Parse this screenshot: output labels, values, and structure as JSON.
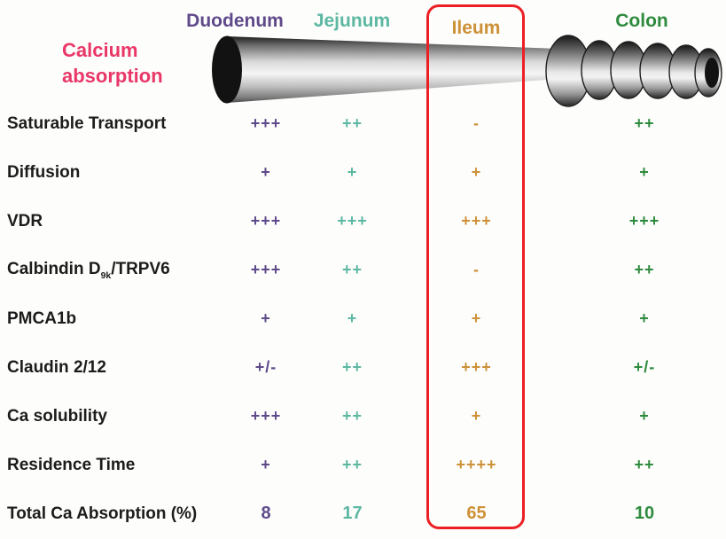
{
  "background": "#fdfdfb",
  "title": {
    "text": "Calcium absorption",
    "color": "#e93768"
  },
  "columns": [
    {
      "id": "duodenum",
      "label": "Duodenum",
      "color": "#5f4a8b"
    },
    {
      "id": "jejunum",
      "label": "Jejunum",
      "color": "#5cb8a2"
    },
    {
      "id": "ileum",
      "label": "Ileum",
      "color": "#cd9138",
      "highlighted": true
    },
    {
      "id": "colon",
      "label": "Colon",
      "color": "#2e8b3e"
    }
  ],
  "highlight": {
    "column": "Ileum",
    "border_color": "#ec2024"
  },
  "rows": [
    {
      "label": "Saturable Transport",
      "values": [
        "+++",
        "++",
        "-",
        "++"
      ]
    },
    {
      "label": "Diffusion",
      "values": [
        "+",
        "+",
        "+",
        "+"
      ]
    },
    {
      "label": "VDR",
      "values": [
        "+++",
        "+++",
        "+++",
        "+++"
      ]
    },
    {
      "label": "Calbindin D9k/TRPV6",
      "label_parts": {
        "pre": "Calbindin D",
        "sub": "9k",
        "post": "/TRPV6"
      },
      "values": [
        "+++",
        "++",
        "-",
        "++"
      ]
    },
    {
      "label": "PMCA1b",
      "values": [
        "+",
        "+",
        "+",
        "+"
      ]
    },
    {
      "label": "Claudin 2/12",
      "values": [
        "+/-",
        "++",
        "+++",
        "+/-"
      ]
    },
    {
      "label": "Ca solubility",
      "values": [
        "+++",
        "++",
        "+",
        "+"
      ]
    },
    {
      "label": "Residence Time",
      "values": [
        "+",
        "++",
        "++++",
        "++"
      ]
    },
    {
      "label": "Total Ca Absorption (%)",
      "values": [
        "8",
        "17",
        "65",
        "10"
      ],
      "numeric": true
    }
  ],
  "illustration": {
    "description": "small intestine tapering tube leading into haustrated colon",
    "tube_light": "#f5f5f5",
    "tube_dark": "#1f1f1f"
  },
  "chart_data": {
    "type": "table",
    "title": "Calcium absorption",
    "columns": [
      "Duodenum",
      "Jejunum",
      "Ileum",
      "Colon"
    ],
    "rows": [
      {
        "label": "Saturable Transport",
        "values": [
          "+++",
          "++",
          "-",
          "++"
        ]
      },
      {
        "label": "Diffusion",
        "values": [
          "+",
          "+",
          "+",
          "+"
        ]
      },
      {
        "label": "VDR",
        "values": [
          "+++",
          "+++",
          "+++",
          "+++"
        ]
      },
      {
        "label": "Calbindin D9k/TRPV6",
        "values": [
          "+++",
          "++",
          "-",
          "++"
        ]
      },
      {
        "label": "PMCA1b",
        "values": [
          "+",
          "+",
          "+",
          "+"
        ]
      },
      {
        "label": "Claudin 2/12",
        "values": [
          "+/-",
          "++",
          "+++",
          "+/-"
        ]
      },
      {
        "label": "Ca solubility",
        "values": [
          "+++",
          "++",
          "+",
          "+"
        ]
      },
      {
        "label": "Residence Time",
        "values": [
          "+",
          "++",
          "++++",
          "++"
        ]
      },
      {
        "label": "Total Ca Absorption (%)",
        "values": [
          8,
          17,
          65,
          10
        ]
      }
    ],
    "highlighted_column": "Ileum"
  }
}
